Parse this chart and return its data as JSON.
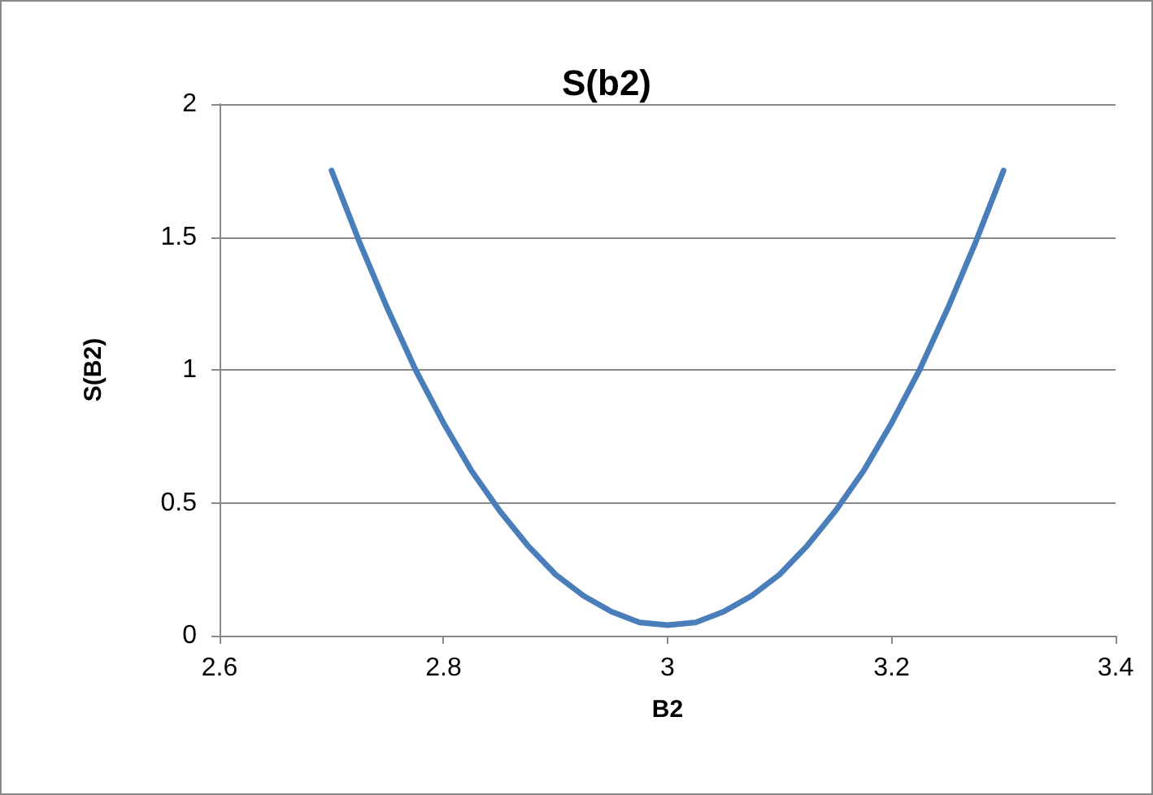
{
  "chart_data": {
    "type": "line",
    "title": "S(b2)",
    "xlabel": "B2",
    "ylabel": "S(B2)",
    "x": [
      2.7,
      2.725,
      2.75,
      2.775,
      2.8,
      2.825,
      2.85,
      2.875,
      2.9,
      2.925,
      2.95,
      2.975,
      3,
      3.025,
      3.05,
      3.075,
      3.1,
      3.125,
      3.15,
      3.175,
      3.2,
      3.225,
      3.25,
      3.275,
      3.3
    ],
    "series": [
      {
        "color": "#4a7ebb",
        "values": [
          1.75,
          1.48,
          1.23,
          1.0,
          0.8,
          0.62,
          0.47,
          0.34,
          0.23,
          0.15,
          0.09,
          0.05,
          0.04,
          0.05,
          0.09,
          0.15,
          0.23,
          0.34,
          0.47,
          0.62,
          0.8,
          1.0,
          1.23,
          1.48,
          1.75
        ]
      }
    ],
    "xlim": [
      2.6,
      3.4
    ],
    "xticks": [
      2.6,
      2.8,
      3,
      3.2,
      3.4
    ],
    "ylim": [
      0,
      2
    ],
    "yticks": [
      0,
      0.5,
      1,
      1.5,
      2
    ],
    "grid": "y",
    "marker": "none",
    "line_style": "solid"
  }
}
